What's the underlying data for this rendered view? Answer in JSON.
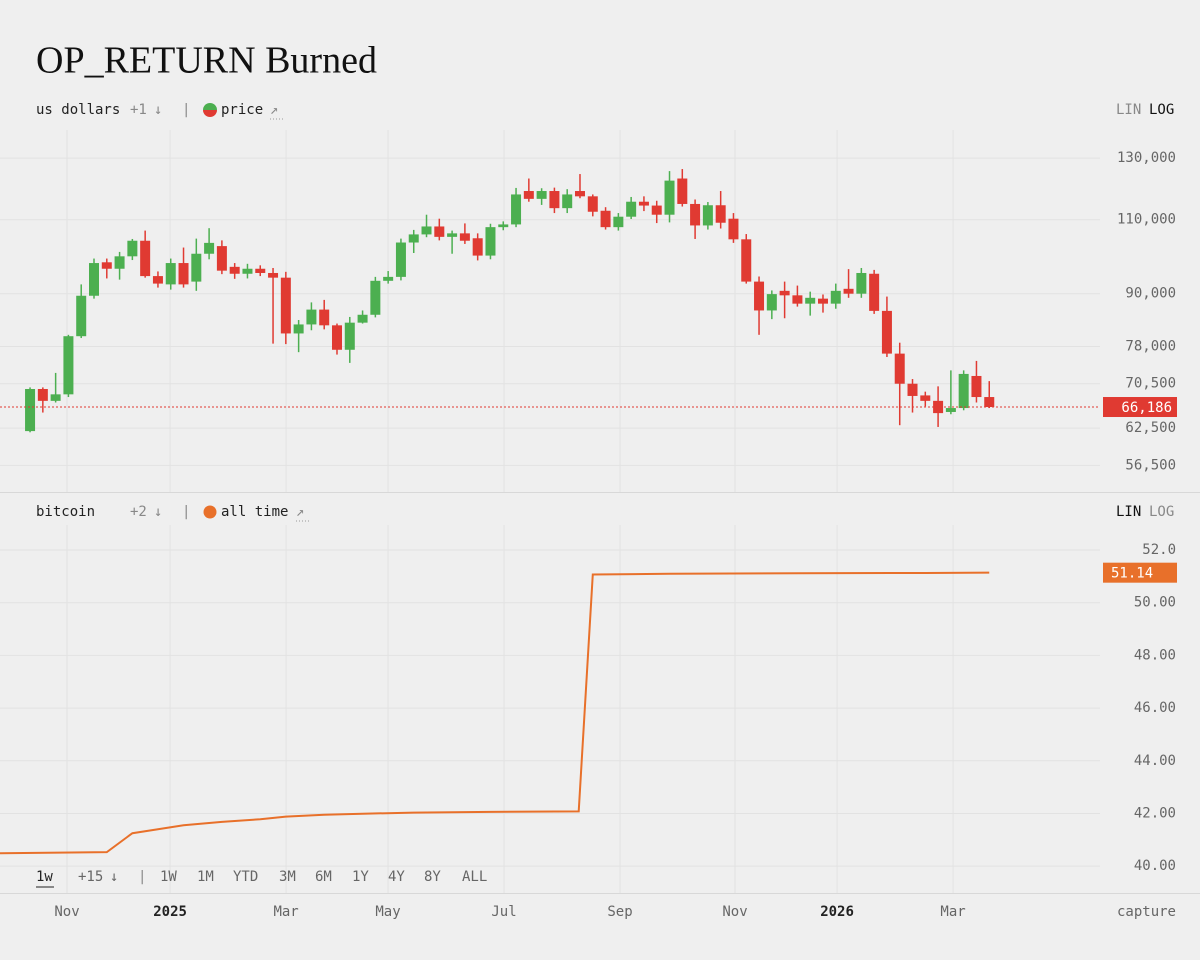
{
  "title": "OP_RETURN Burned",
  "chart_data": [
    {
      "type": "candlestick",
      "unit": "us dollars",
      "more": "+1",
      "menu_icon": "↓",
      "separator": "|",
      "link_icon": "↗",
      "scale_options": [
        "LIN",
        "LOG"
      ],
      "log_scale": true,
      "grid": true,
      "colors": {
        "up": "#4caf50",
        "down": "#e03a32"
      },
      "series": [
        {
          "name": "price",
          "x": [
            0,
            1,
            2,
            3,
            4,
            5,
            6,
            7,
            8,
            9,
            10,
            11,
            12,
            13,
            14,
            15,
            16,
            17,
            18,
            19,
            20,
            21,
            22,
            23,
            24,
            25,
            26,
            27,
            28,
            29,
            30,
            31,
            32,
            33,
            34,
            35,
            36,
            37,
            38,
            39,
            40,
            41,
            42,
            43,
            44,
            45,
            46,
            47,
            48,
            49,
            50,
            51,
            52,
            53,
            54,
            55,
            56,
            57,
            58,
            59,
            60,
            61,
            62,
            63,
            64,
            65,
            66,
            67,
            68,
            69,
            70,
            71,
            72,
            73,
            74,
            75
          ],
          "open": [
            62000,
            69500,
            67300,
            68500,
            80200,
            89500,
            98000,
            96300,
            99600,
            103900,
            94400,
            92300,
            97800,
            93000,
            100300,
            102400,
            96800,
            95000,
            96300,
            95200,
            94000,
            80800,
            82800,
            86200,
            82600,
            77300,
            83200,
            85000,
            93200,
            94200,
            103400,
            105700,
            108000,
            105000,
            106000,
            104600,
            99800,
            107800,
            108600,
            118900,
            116400,
            118900,
            113500,
            118900,
            117200,
            112700,
            107800,
            110900,
            115500,
            114300,
            111500,
            123000,
            114800,
            108300,
            114400,
            110300,
            104300,
            93000,
            86000,
            90700,
            89600,
            87600,
            88800,
            87600,
            91200,
            90000,
            95000,
            85900,
            76500,
            70500,
            68300,
            67300,
            65300,
            66000,
            72000,
            68000
          ],
          "high": [
            69800,
            69800,
            72600,
            80500,
            92300,
            99000,
            99000,
            100800,
            104400,
            106800,
            95600,
            99000,
            102000,
            104500,
            107500,
            104000,
            97800,
            97600,
            97200,
            96500,
            95500,
            83800,
            87900,
            88500,
            83000,
            84500,
            86000,
            94200,
            95700,
            104500,
            107000,
            111500,
            110300,
            106800,
            108900,
            106000,
            108800,
            109500,
            119900,
            123000,
            119800,
            120000,
            119500,
            124500,
            117800,
            113800,
            112000,
            117000,
            117200,
            115800,
            125500,
            126200,
            116200,
            115400,
            118900,
            112000,
            105800,
            94300,
            90800,
            93000,
            92000,
            90500,
            89800,
            92500,
            96200,
            96500,
            96000,
            89300,
            78800,
            71400,
            69000,
            70000,
            73100,
            73100,
            75000,
            71000
          ],
          "low": [
            61800,
            65200,
            67000,
            68000,
            79800,
            88800,
            93800,
            93500,
            98600,
            94000,
            91500,
            91000,
            91500,
            90700,
            98800,
            94900,
            93700,
            93800,
            94400,
            78600,
            78500,
            76800,
            81500,
            81700,
            76300,
            74600,
            83000,
            84400,
            92500,
            93300,
            100500,
            104900,
            104000,
            100300,
            103000,
            98500,
            98800,
            106900,
            107800,
            115500,
            114500,
            112000,
            112000,
            116600,
            111000,
            107100,
            106800,
            110200,
            112600,
            109000,
            109200,
            114000,
            104400,
            107100,
            107400,
            103300,
            92500,
            80500,
            84000,
            84200,
            86900,
            84800,
            85500,
            86400,
            89000,
            89000,
            85200,
            75800,
            63000,
            65200,
            66300,
            62700,
            64900,
            65600,
            67000,
            66000
          ],
          "close": [
            69500,
            67300,
            68500,
            80200,
            89500,
            97800,
            96300,
            99600,
            103900,
            94400,
            92500,
            97800,
            92300,
            100300,
            103300,
            95800,
            95000,
            96300,
            95200,
            94000,
            80800,
            82800,
            86200,
            82600,
            77300,
            83200,
            85000,
            93200,
            94200,
            103400,
            105700,
            108000,
            105000,
            106000,
            103900,
            99800,
            107800,
            108600,
            117800,
            116400,
            118900,
            113500,
            117800,
            117200,
            112400,
            107800,
            110900,
            115500,
            114300,
            111500,
            122300,
            114800,
            108300,
            114400,
            109100,
            104300,
            93000,
            86000,
            89900,
            89600,
            87600,
            89000,
            87600,
            90700,
            90000,
            95200,
            85900,
            76500,
            70500,
            68200,
            67300,
            65100,
            66000,
            72400,
            68000,
            66186
          ]
        }
      ],
      "ylim": [
        52560,
        140300
      ],
      "yticks": [
        {
          "value": 56500,
          "label": "56,500"
        },
        {
          "value": 62500,
          "label": "62,500"
        },
        {
          "value": 70500,
          "label": "70,500"
        },
        {
          "value": 78000,
          "label": "78,000"
        },
        {
          "value": 90000,
          "label": "90,000"
        },
        {
          "value": 110000,
          "label": "110,000"
        },
        {
          "value": 130000,
          "label": "130,000"
        }
      ],
      "last_label": "66,186"
    },
    {
      "type": "line",
      "unit": "bitcoin",
      "more": "+2",
      "menu_icon": "↓",
      "separator": "|",
      "link_icon": "↗",
      "scale_options": [
        "LIN",
        "LOG"
      ],
      "log_scale": false,
      "grid": true,
      "series": [
        {
          "name": "all time",
          "color": "#e8702a",
          "x": [
            -2.35,
            6,
            8,
            10,
            12,
            15,
            18,
            20,
            23,
            26,
            30,
            36,
            42.9,
            44,
            50,
            60,
            70,
            75
          ],
          "values": [
            40.49,
            40.53,
            41.25,
            41.4,
            41.55,
            41.68,
            41.78,
            41.88,
            41.95,
            41.99,
            42.03,
            42.06,
            42.08,
            51.07,
            51.1,
            51.12,
            51.13,
            51.14
          ]
        }
      ],
      "ylim": [
        38.98,
        52.95
      ],
      "yticks": [
        {
          "value": 40,
          "label": "40.00"
        },
        {
          "value": 42,
          "label": "42.00"
        },
        {
          "value": 44,
          "label": "44.00"
        },
        {
          "value": 46,
          "label": "46.00"
        },
        {
          "value": 48,
          "label": "48.00"
        },
        {
          "value": 50,
          "label": "50.00"
        },
        {
          "value": 52,
          "label": "52.0"
        }
      ],
      "last_label": "51.14"
    }
  ],
  "x_axis": {
    "xlim": [
      -2.35,
      83.66
    ],
    "xticks": [
      {
        "value": 2.89,
        "label": "Nov"
      },
      {
        "value": 10.95,
        "label": "2025"
      },
      {
        "value": 20.02,
        "label": "Mar"
      },
      {
        "value": 27.99,
        "label": "May"
      },
      {
        "value": 37.06,
        "label": "Jul"
      },
      {
        "value": 46.13,
        "label": "Sep"
      },
      {
        "value": 55.12,
        "label": "Nov"
      },
      {
        "value": 63.1,
        "label": "2026"
      },
      {
        "value": 72.17,
        "label": "Mar"
      }
    ]
  },
  "timeframe_bar": {
    "current": "1w",
    "more": "+15",
    "menu_icon": "↓",
    "separator": "|",
    "options": [
      "1W",
      "1M",
      "YTD",
      "3M",
      "6M",
      "1Y",
      "4Y",
      "8Y",
      "ALL"
    ]
  },
  "capture": "capture"
}
